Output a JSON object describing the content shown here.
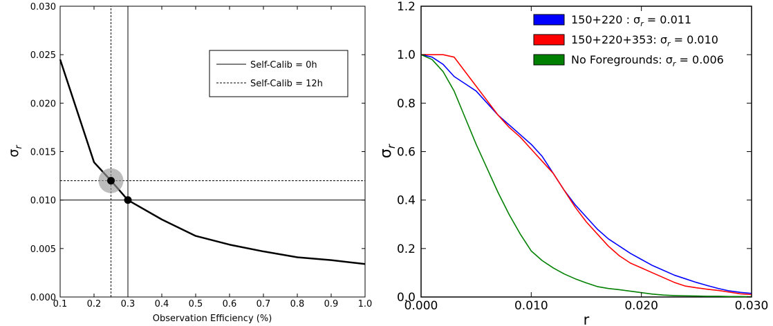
{
  "chart_data": [
    {
      "type": "line",
      "xlabel": "Observation Efficiency (%)",
      "ylabel": "σ",
      "ylabel_sub": "r",
      "xlim": [
        0.1,
        1.0
      ],
      "ylim": [
        0.0,
        0.03
      ],
      "xticks": [
        "0.1",
        "0.2",
        "0.3",
        "0.4",
        "0.5",
        "0.6",
        "0.7",
        "0.8",
        "0.9",
        "1.0"
      ],
      "yticks": [
        "0.000",
        "0.005",
        "0.010",
        "0.015",
        "0.020",
        "0.025",
        "0.030"
      ],
      "series": [
        {
          "name": "",
          "color": "#000000",
          "x": [
            0.1,
            0.2,
            0.25,
            0.3,
            0.4,
            0.5,
            0.6,
            0.7,
            0.8,
            0.9,
            1.0
          ],
          "y": [
            0.0245,
            0.0139,
            0.012,
            0.01,
            0.008,
            0.0063,
            0.0054,
            0.0047,
            0.0041,
            0.0038,
            0.0034
          ]
        }
      ],
      "reference_lines": [
        {
          "label": "Self-Calib = 0h",
          "style": "solid",
          "x": 0.3,
          "y": 0.01
        },
        {
          "label": "Self-Calib = 12h",
          "style": "dashed",
          "x": 0.25,
          "y": 0.012
        }
      ],
      "markers": [
        {
          "x": 0.25,
          "y": 0.012,
          "highlight": true
        },
        {
          "x": 0.3,
          "y": 0.01,
          "highlight": false
        }
      ],
      "legend_position": "upper-right"
    },
    {
      "type": "line",
      "xlabel": "r",
      "ylabel": "σ",
      "ylabel_sub": "r",
      "xlim": [
        0.0,
        0.03
      ],
      "ylim": [
        0.0,
        1.2
      ],
      "xticks": [
        "0.000",
        "0.010",
        "0.020",
        "0.030"
      ],
      "yticks": [
        "0.0",
        "0.2",
        "0.4",
        "0.6",
        "0.8",
        "1.0",
        "1.2"
      ],
      "legend_position": "top-right",
      "series": [
        {
          "name_main": "150+220 : σ",
          "name_sub": "r",
          "name_tail": " = 0.011",
          "color": "#0000ff",
          "x": [
            0.0,
            0.001,
            0.002,
            0.003,
            0.004,
            0.005,
            0.006,
            0.007,
            0.008,
            0.009,
            0.01,
            0.011,
            0.012,
            0.013,
            0.014,
            0.015,
            0.016,
            0.017,
            0.018,
            0.019,
            0.02,
            0.021,
            0.022,
            0.023,
            0.024,
            0.025,
            0.026,
            0.027,
            0.028,
            0.029,
            0.03
          ],
          "y": [
            1.0,
            0.99,
            0.96,
            0.91,
            0.88,
            0.85,
            0.8,
            0.75,
            0.71,
            0.67,
            0.63,
            0.58,
            0.51,
            0.44,
            0.38,
            0.33,
            0.28,
            0.24,
            0.21,
            0.18,
            0.155,
            0.13,
            0.11,
            0.09,
            0.075,
            0.06,
            0.047,
            0.035,
            0.025,
            0.019,
            0.015
          ]
        },
        {
          "name_main": "150+220+353: σ",
          "name_sub": "r",
          "name_tail": " = 0.010",
          "color": "#ff0000",
          "x": [
            0.0,
            0.001,
            0.002,
            0.003,
            0.004,
            0.005,
            0.006,
            0.007,
            0.008,
            0.009,
            0.01,
            0.011,
            0.012,
            0.013,
            0.014,
            0.015,
            0.016,
            0.017,
            0.018,
            0.019,
            0.02,
            0.021,
            0.022,
            0.023,
            0.024,
            0.025,
            0.026,
            0.027,
            0.028,
            0.029,
            0.03
          ],
          "y": [
            1.0,
            1.0,
            1.0,
            0.99,
            0.93,
            0.87,
            0.81,
            0.75,
            0.7,
            0.66,
            0.61,
            0.56,
            0.51,
            0.44,
            0.37,
            0.31,
            0.26,
            0.21,
            0.17,
            0.14,
            0.12,
            0.1,
            0.08,
            0.06,
            0.045,
            0.038,
            0.032,
            0.027,
            0.02,
            0.013,
            0.01
          ]
        },
        {
          "name_main": "No Foregrounds: σ",
          "name_sub": "r",
          "name_tail": " = 0.006",
          "color": "#008000",
          "x": [
            0.0,
            0.001,
            0.002,
            0.003,
            0.004,
            0.005,
            0.006,
            0.007,
            0.008,
            0.009,
            0.01,
            0.011,
            0.012,
            0.013,
            0.014,
            0.015,
            0.016,
            0.017,
            0.018,
            0.019,
            0.02,
            0.021,
            0.022,
            0.023,
            0.024,
            0.025,
            0.026,
            0.027,
            0.028,
            0.029,
            0.03
          ],
          "y": [
            1.0,
            0.98,
            0.93,
            0.85,
            0.74,
            0.63,
            0.53,
            0.43,
            0.34,
            0.26,
            0.19,
            0.15,
            0.12,
            0.095,
            0.075,
            0.058,
            0.043,
            0.035,
            0.03,
            0.024,
            0.018,
            0.012,
            0.008,
            0.006,
            0.005,
            0.004,
            0.003,
            0.003,
            0.002,
            0.002,
            0.001
          ]
        }
      ]
    }
  ]
}
